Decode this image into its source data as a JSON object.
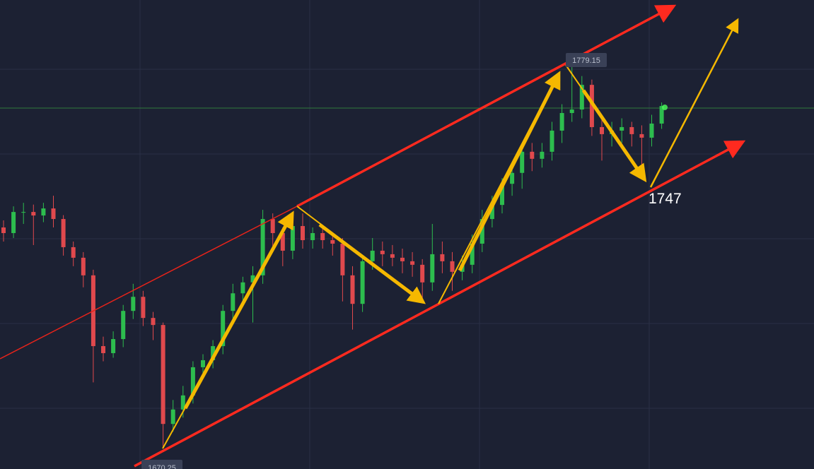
{
  "chart_data": {
    "type": "candlestick",
    "ylim": [
      1664.4,
      1797.6
    ],
    "up_color": "#2dbd4e",
    "down_color": "#e0494d",
    "candles": [
      [
        1733.0,
        1735.0,
        1729.0,
        1731.4
      ],
      [
        1731.4,
        1739.0,
        1730.0,
        1737.4
      ],
      [
        1737.4,
        1740.0,
        1734.0,
        1737.4
      ],
      [
        1737.4,
        1739.5,
        1728.0,
        1736.4
      ],
      [
        1736.4,
        1740.0,
        1734.5,
        1738.4
      ],
      [
        1738.4,
        1742.0,
        1733.0,
        1735.4
      ],
      [
        1735.4,
        1736.5,
        1725.0,
        1727.4
      ],
      [
        1727.4,
        1729.0,
        1722.0,
        1724.4
      ],
      [
        1724.4,
        1726.0,
        1716.0,
        1719.4
      ],
      [
        1719.4,
        1721.0,
        1689.0,
        1699.3
      ],
      [
        1699.3,
        1702.0,
        1695.0,
        1697.3
      ],
      [
        1697.3,
        1703.5,
        1696.0,
        1701.3
      ],
      [
        1701.3,
        1711.0,
        1699.0,
        1709.3
      ],
      [
        1709.3,
        1717.0,
        1707.0,
        1713.3
      ],
      [
        1713.3,
        1715.0,
        1705.0,
        1707.3
      ],
      [
        1707.3,
        1709.0,
        1701.0,
        1705.3
      ],
      [
        1705.3,
        1706.0,
        1670.25,
        1677.2
      ],
      [
        1677.2,
        1684.0,
        1675.0,
        1681.3
      ],
      [
        1681.3,
        1688.0,
        1679.0,
        1685.3
      ],
      [
        1685.3,
        1695.0,
        1683.0,
        1693.3
      ],
      [
        1693.3,
        1697.0,
        1690.0,
        1695.3
      ],
      [
        1695.3,
        1701.0,
        1693.0,
        1699.3
      ],
      [
        1699.3,
        1711.0,
        1697.0,
        1709.3
      ],
      [
        1709.3,
        1717.0,
        1707.0,
        1714.3
      ],
      [
        1714.3,
        1719.0,
        1712.0,
        1717.4
      ],
      [
        1717.4,
        1722.0,
        1706.0,
        1719.4
      ],
      [
        1719.4,
        1738.0,
        1717.0,
        1735.4
      ],
      [
        1735.4,
        1737.0,
        1727.0,
        1731.4
      ],
      [
        1731.4,
        1733.0,
        1722.0,
        1726.4
      ],
      [
        1726.4,
        1735.0,
        1724.0,
        1733.4
      ],
      [
        1733.4,
        1737.0,
        1727.0,
        1729.4
      ],
      [
        1729.4,
        1733.0,
        1727.0,
        1731.4
      ],
      [
        1731.4,
        1733.0,
        1727.0,
        1729.4
      ],
      [
        1729.4,
        1731.0,
        1725.0,
        1728.4
      ],
      [
        1728.4,
        1730.0,
        1712.0,
        1719.4
      ],
      [
        1719.4,
        1722.0,
        1704.0,
        1711.3
      ],
      [
        1711.3,
        1725.0,
        1709.0,
        1723.4
      ],
      [
        1723.4,
        1730.0,
        1721.0,
        1726.4
      ],
      [
        1726.4,
        1729.0,
        1722.0,
        1725.4
      ],
      [
        1725.4,
        1728.0,
        1722.0,
        1724.4
      ],
      [
        1724.4,
        1727.0,
        1720.0,
        1723.4
      ],
      [
        1723.4,
        1726.0,
        1719.0,
        1722.4
      ],
      [
        1722.4,
        1724.0,
        1713.0,
        1717.4
      ],
      [
        1717.4,
        1734.0,
        1715.0,
        1725.4
      ],
      [
        1725.4,
        1729.0,
        1720.0,
        1723.4
      ],
      [
        1723.4,
        1726.0,
        1715.0,
        1720.4
      ],
      [
        1720.4,
        1725.0,
        1718.0,
        1722.4
      ],
      [
        1722.4,
        1731.0,
        1720.0,
        1728.4
      ],
      [
        1728.4,
        1738.0,
        1726.0,
        1735.4
      ],
      [
        1735.4,
        1742.0,
        1733.0,
        1739.4
      ],
      [
        1739.4,
        1747.0,
        1737.0,
        1745.4
      ],
      [
        1745.4,
        1751.0,
        1742.0,
        1748.5
      ],
      [
        1748.5,
        1757.0,
        1744.0,
        1754.5
      ],
      [
        1754.5,
        1757.0,
        1749.0,
        1752.5
      ],
      [
        1752.5,
        1757.0,
        1750.0,
        1754.5
      ],
      [
        1754.5,
        1763.0,
        1752.0,
        1760.5
      ],
      [
        1760.5,
        1768.0,
        1757.0,
        1765.5
      ],
      [
        1765.5,
        1779.15,
        1763.0,
        1766.5
      ],
      [
        1766.5,
        1776.0,
        1764.0,
        1773.5
      ],
      [
        1773.5,
        1775.0,
        1759.0,
        1761.5
      ],
      [
        1761.5,
        1764.0,
        1752.0,
        1759.5
      ],
      [
        1759.5,
        1763.0,
        1756.0,
        1760.5
      ],
      [
        1760.5,
        1764.0,
        1757.0,
        1761.5
      ],
      [
        1761.5,
        1763.0,
        1756.0,
        1759.5
      ],
      [
        1759.5,
        1762.0,
        1747.0,
        1758.5
      ],
      [
        1758.5,
        1765.0,
        1756.0,
        1762.5
      ],
      [
        1762.5,
        1768.5,
        1761.0,
        1767.5
      ]
    ],
    "annotations": {
      "high": 1779.15,
      "low": 1670.25,
      "target": 1747
    }
  }
}
